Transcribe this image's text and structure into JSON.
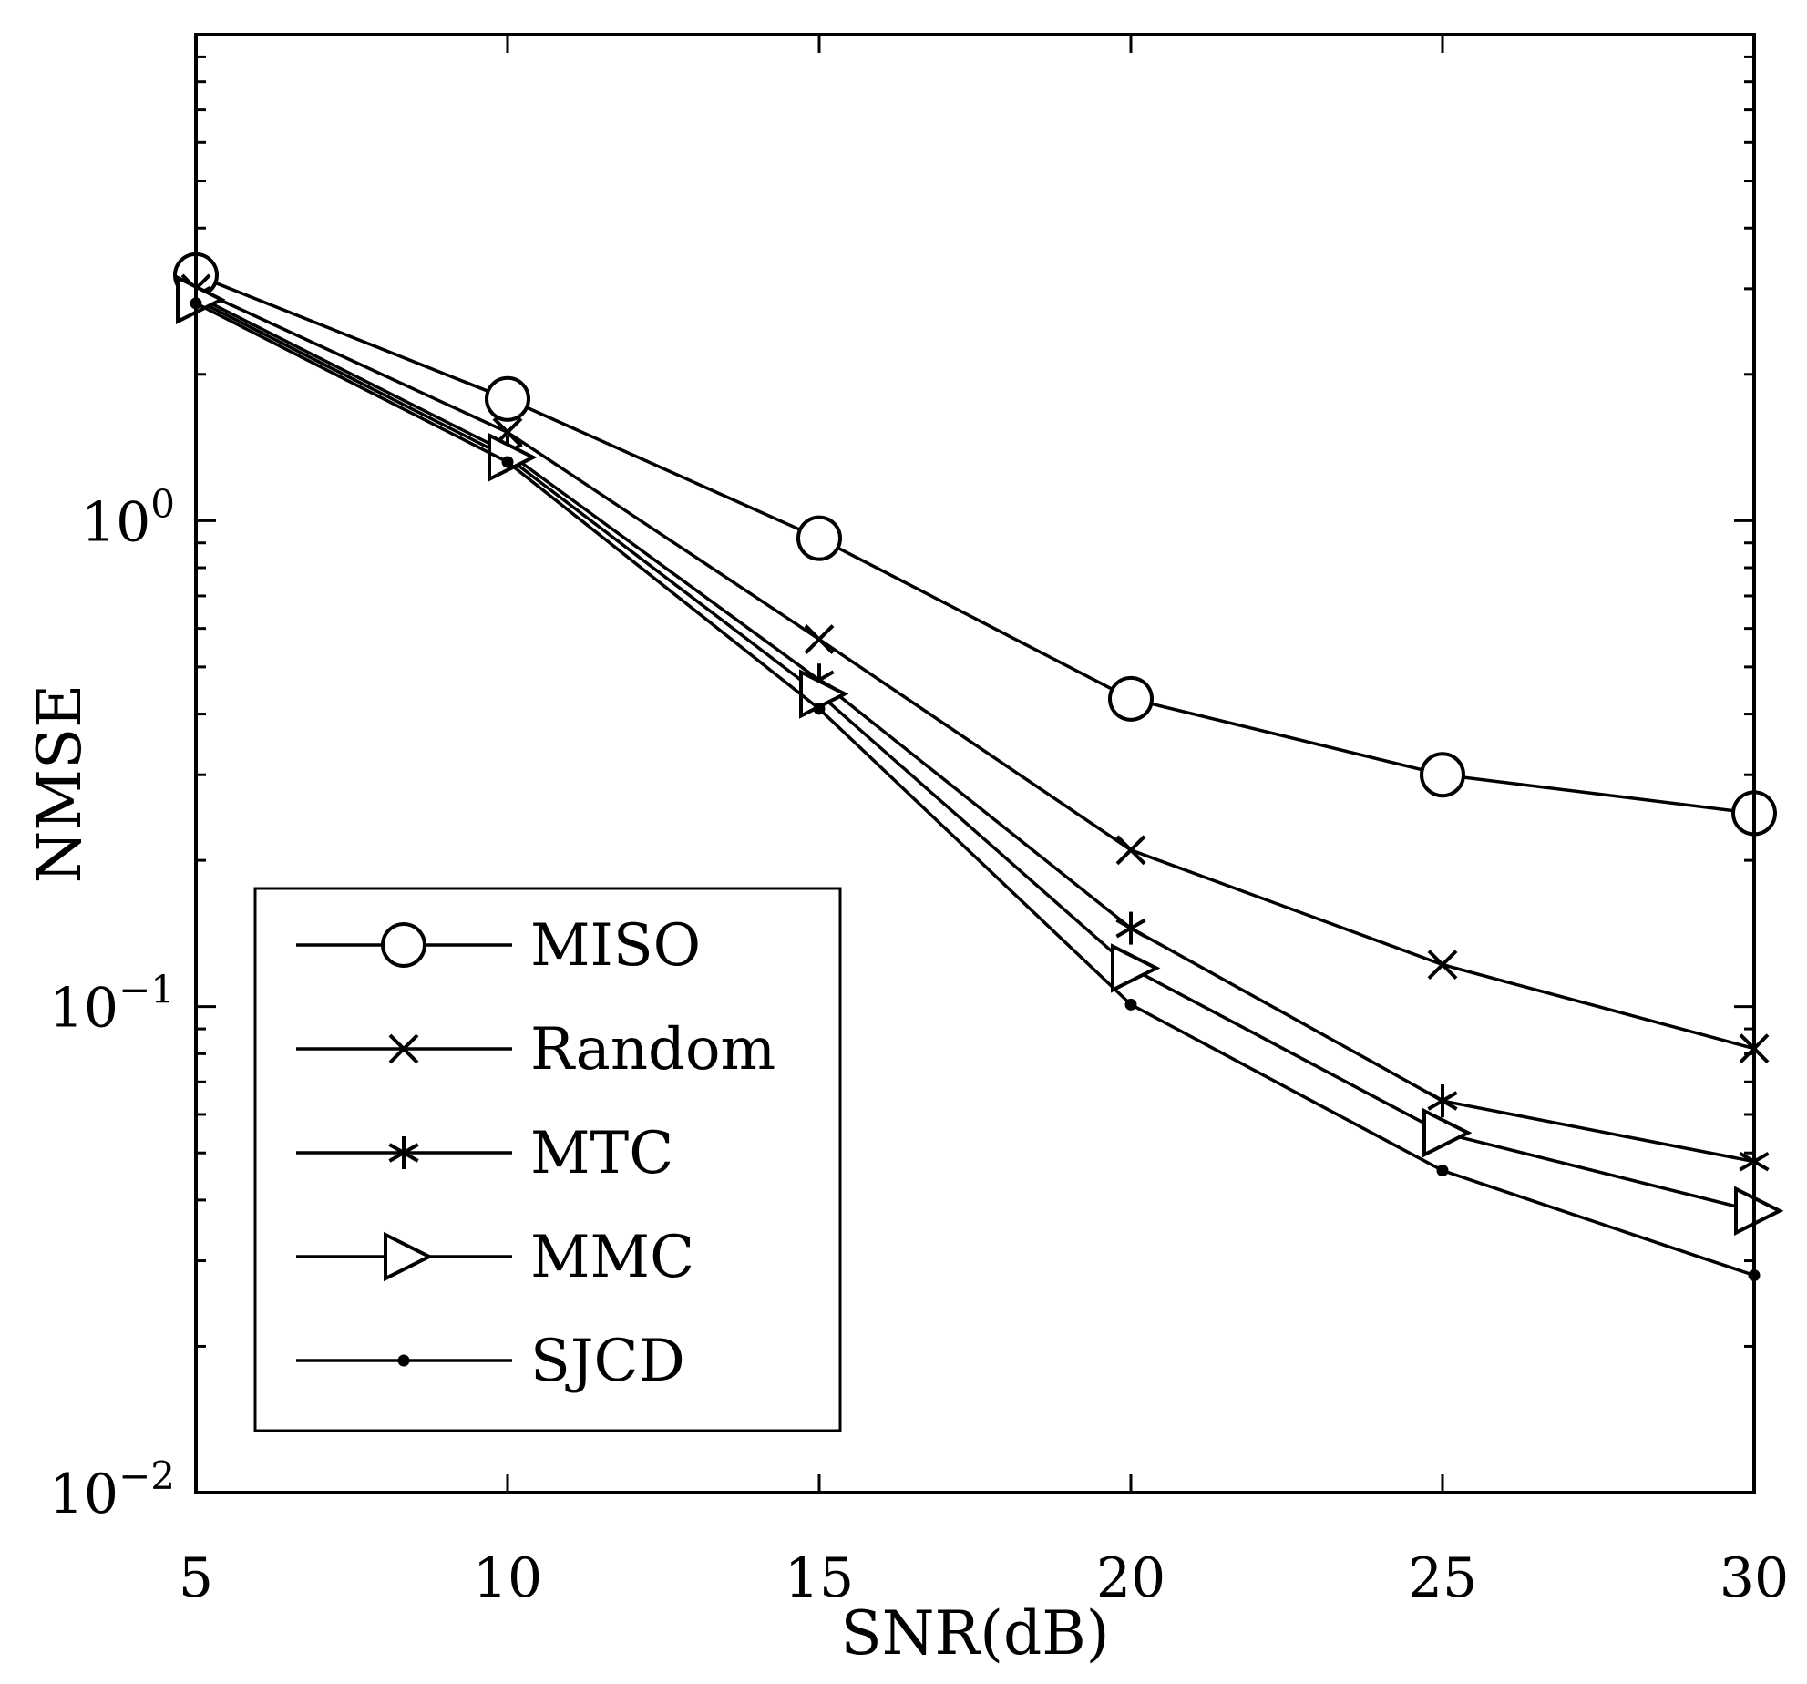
{
  "chart_data": {
    "type": "line",
    "title": "",
    "xlabel": "SNR(dB)",
    "ylabel": "NMSE",
    "x": [
      5,
      10,
      15,
      20,
      25,
      30
    ],
    "xlim": [
      5,
      30
    ],
    "ylim": [
      0.01,
      10
    ],
    "yscale": "log",
    "xticks": [
      "5",
      "10",
      "15",
      "20",
      "25",
      "30"
    ],
    "yticks": [
      {
        "base": "10",
        "exp": "0",
        "value": 1
      },
      {
        "base": "10",
        "exp": "−1",
        "value": 0.1
      },
      {
        "base": "10",
        "exp": "−2",
        "value": 0.01
      }
    ],
    "grid": false,
    "legend_position": "bottom-left",
    "series": [
      {
        "name": "MISO",
        "marker": "circle",
        "values": [
          3.2,
          1.78,
          0.92,
          0.43,
          0.3,
          0.25
        ]
      },
      {
        "name": "Random",
        "marker": "x",
        "values": [
          3.0,
          1.52,
          0.57,
          0.21,
          0.122,
          0.082
        ]
      },
      {
        "name": "MTC",
        "marker": "asterisk",
        "values": [
          2.9,
          1.38,
          0.47,
          0.145,
          0.064,
          0.048
        ]
      },
      {
        "name": "MMC",
        "marker": "triangle-right",
        "values": [
          2.85,
          1.35,
          0.44,
          0.12,
          0.055,
          0.038
        ]
      },
      {
        "name": "SJCD",
        "marker": "dot",
        "values": [
          2.8,
          1.32,
          0.41,
          0.101,
          0.046,
          0.028
        ]
      }
    ]
  }
}
